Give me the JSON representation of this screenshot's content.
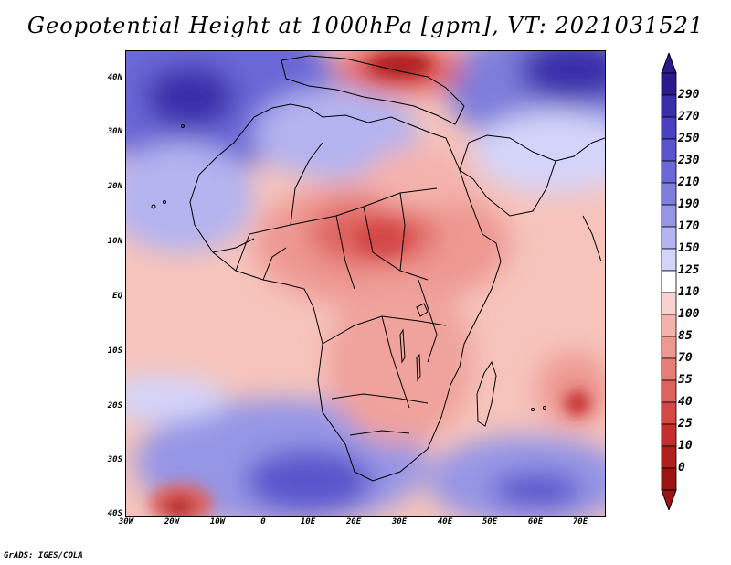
{
  "title": "Geopotential Height at 1000hPa [gpm], VT: 2021031521",
  "credit": "GrADS: IGES/COLA",
  "axes": {
    "lat_labels": [
      "40N",
      "30N",
      "20N",
      "10N",
      "EQ",
      "10S",
      "20S",
      "30S",
      "40S"
    ],
    "lon_labels": [
      "30W",
      "20W",
      "10W",
      "0",
      "10E",
      "20E",
      "30E",
      "40E",
      "50E",
      "60E",
      "70E"
    ]
  },
  "colorbar": {
    "levels": [
      "290",
      "270",
      "250",
      "230",
      "210",
      "190",
      "170",
      "150",
      "125",
      "110",
      "100",
      "85",
      "70",
      "55",
      "40",
      "25",
      "10",
      "0"
    ],
    "colors": [
      "#2a1a8c",
      "#3a2eaa",
      "#4a40c0",
      "#5a54cc",
      "#6a68d6",
      "#7e7edc",
      "#9696e6",
      "#b4b4f0",
      "#d4d4fa",
      "#ffffff",
      "#f8d2ce",
      "#f4b2ac",
      "#ee9892",
      "#e67e78",
      "#de625e",
      "#d44846",
      "#c42e2e",
      "#b01e1e",
      "#9a1414"
    ]
  }
}
